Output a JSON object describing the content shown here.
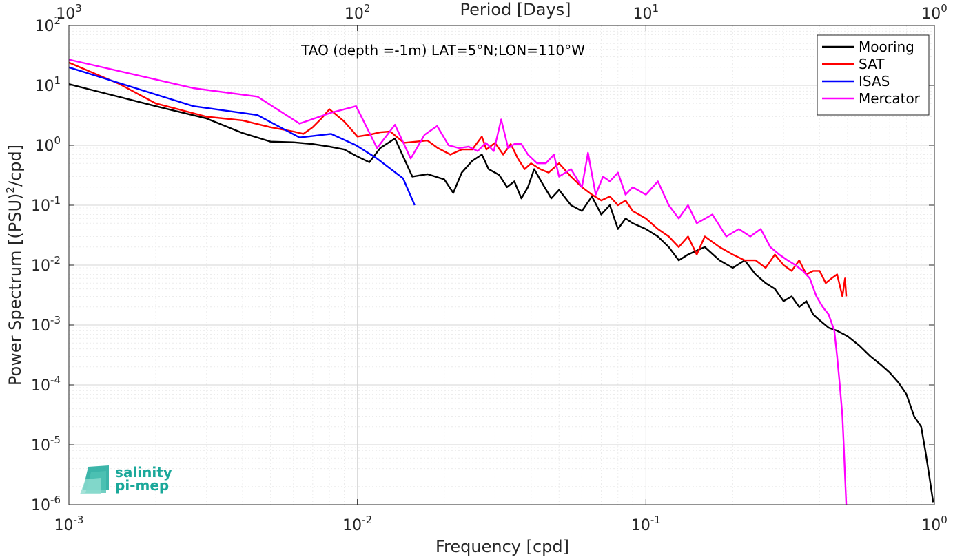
{
  "chart_data": {
    "type": "line",
    "title": "TAO (depth =-1m) LAT=5°N;LON=110°W",
    "xlabel": "Frequency [cpd]",
    "ylabel": "Power Spectrum [(PSU)²/cpd]",
    "ylabel_parts": {
      "before": "Power Spectrum [(PSU)",
      "sup": "2",
      "after": "/cpd]"
    },
    "top_xlabel": "Period [Days]",
    "x_scale": "log",
    "y_scale": "log",
    "xlim": [
      0.001,
      1
    ],
    "ylim": [
      1e-06,
      100
    ],
    "grid": true,
    "legend_position": "top-right",
    "x_ticks": [
      {
        "base": "10",
        "exp": "-3",
        "value": 0.001
      },
      {
        "base": "10",
        "exp": "-2",
        "value": 0.01
      },
      {
        "base": "10",
        "exp": "-1",
        "value": 0.1
      },
      {
        "base": "10",
        "exp": "0",
        "value": 1
      }
    ],
    "top_x_ticks": [
      {
        "base": "10",
        "exp": "3",
        "value": 0.001
      },
      {
        "base": "10",
        "exp": "2",
        "value": 0.01
      },
      {
        "base": "10",
        "exp": "1",
        "value": 0.1
      },
      {
        "base": "10",
        "exp": "0",
        "value": 1
      }
    ],
    "y_ticks": [
      {
        "base": "10",
        "exp": "2",
        "value": 100
      },
      {
        "base": "10",
        "exp": "1",
        "value": 10
      },
      {
        "base": "10",
        "exp": "0",
        "value": 1
      },
      {
        "base": "10",
        "exp": "-1",
        "value": 0.1
      },
      {
        "base": "10",
        "exp": "-2",
        "value": 0.01
      },
      {
        "base": "10",
        "exp": "-3",
        "value": 0.001
      },
      {
        "base": "10",
        "exp": "-4",
        "value": 0.0001
      },
      {
        "base": "10",
        "exp": "-5",
        "value": 1e-05
      },
      {
        "base": "10",
        "exp": "-6",
        "value": 1e-06
      }
    ],
    "series": [
      {
        "name": "Mooring",
        "color": "#000000",
        "x": [
          0.001,
          0.002,
          0.003,
          0.004,
          0.005,
          0.006,
          0.007,
          0.008,
          0.009,
          0.01,
          0.011,
          0.012,
          0.0135,
          0.0155,
          0.0175,
          0.02,
          0.0215,
          0.023,
          0.025,
          0.027,
          0.0285,
          0.031,
          0.033,
          0.035,
          0.037,
          0.039,
          0.041,
          0.044,
          0.047,
          0.05,
          0.055,
          0.06,
          0.065,
          0.07,
          0.075,
          0.08,
          0.085,
          0.09,
          0.1,
          0.11,
          0.12,
          0.13,
          0.14,
          0.16,
          0.18,
          0.2,
          0.22,
          0.24,
          0.26,
          0.28,
          0.3,
          0.32,
          0.34,
          0.36,
          0.38,
          0.4,
          0.43,
          0.46,
          0.5,
          0.55,
          0.6,
          0.65,
          0.7,
          0.75,
          0.8,
          0.85,
          0.9,
          0.93,
          0.96,
          0.99
        ],
        "y": [
          10.5,
          4.5,
          2.8,
          1.6,
          1.15,
          1.12,
          1.05,
          0.95,
          0.85,
          0.65,
          0.52,
          0.9,
          1.3,
          0.3,
          0.33,
          0.27,
          0.16,
          0.35,
          0.55,
          0.7,
          0.4,
          0.32,
          0.2,
          0.25,
          0.13,
          0.2,
          0.4,
          0.22,
          0.13,
          0.18,
          0.1,
          0.08,
          0.14,
          0.07,
          0.1,
          0.04,
          0.06,
          0.05,
          0.04,
          0.03,
          0.02,
          0.012,
          0.015,
          0.02,
          0.012,
          0.009,
          0.012,
          0.007,
          0.005,
          0.004,
          0.0025,
          0.003,
          0.002,
          0.0025,
          0.0015,
          0.0012,
          0.0009,
          0.0008,
          0.00065,
          0.00045,
          0.0003,
          0.00022,
          0.00016,
          0.00011,
          7e-05,
          3e-05,
          2e-05,
          8e-06,
          3e-06,
          1.1e-06
        ]
      },
      {
        "name": "SAT",
        "color": "#ff0000",
        "x": [
          0.001,
          0.0015,
          0.002,
          0.003,
          0.004,
          0.005,
          0.006,
          0.0065,
          0.007,
          0.0075,
          0.008,
          0.009,
          0.01,
          0.011,
          0.012,
          0.013,
          0.0145,
          0.016,
          0.0175,
          0.019,
          0.021,
          0.023,
          0.025,
          0.027,
          0.028,
          0.03,
          0.032,
          0.034,
          0.036,
          0.038,
          0.04,
          0.043,
          0.046,
          0.05,
          0.055,
          0.06,
          0.065,
          0.07,
          0.075,
          0.08,
          0.085,
          0.09,
          0.1,
          0.11,
          0.12,
          0.13,
          0.14,
          0.15,
          0.16,
          0.18,
          0.2,
          0.22,
          0.24,
          0.26,
          0.28,
          0.3,
          0.32,
          0.34,
          0.36,
          0.38,
          0.4,
          0.42,
          0.44,
          0.46,
          0.48,
          0.49,
          0.495
        ],
        "y": [
          24.0,
          10.5,
          5.0,
          3.0,
          2.6,
          2.0,
          1.7,
          1.55,
          2.0,
          2.8,
          4.0,
          2.5,
          1.4,
          1.5,
          1.65,
          1.7,
          1.1,
          1.15,
          1.2,
          0.9,
          0.7,
          0.85,
          0.85,
          1.4,
          0.85,
          1.1,
          0.7,
          1.05,
          0.6,
          0.4,
          0.5,
          0.4,
          0.35,
          0.5,
          0.3,
          0.2,
          0.15,
          0.12,
          0.14,
          0.1,
          0.12,
          0.08,
          0.06,
          0.04,
          0.03,
          0.02,
          0.03,
          0.015,
          0.03,
          0.02,
          0.015,
          0.012,
          0.012,
          0.009,
          0.015,
          0.01,
          0.008,
          0.012,
          0.007,
          0.008,
          0.008,
          0.005,
          0.006,
          0.007,
          0.003,
          0.006,
          0.003
        ]
      },
      {
        "name": "ISAS",
        "color": "#0000ff",
        "x": [
          0.001,
          0.0027,
          0.0045,
          0.0063,
          0.0081,
          0.0099,
          0.0117,
          0.0144,
          0.0158
        ],
        "y": [
          20.0,
          4.5,
          3.2,
          1.35,
          1.55,
          1.0,
          0.6,
          0.28,
          0.1
        ]
      },
      {
        "name": "Mercator",
        "color": "#ff00ff",
        "x": [
          0.001,
          0.0027,
          0.0045,
          0.0063,
          0.0081,
          0.0099,
          0.0117,
          0.0135,
          0.0153,
          0.0171,
          0.0189,
          0.0207,
          0.0225,
          0.0243,
          0.0261,
          0.0279,
          0.0297,
          0.0315,
          0.0333,
          0.035,
          0.037,
          0.039,
          0.042,
          0.045,
          0.048,
          0.05,
          0.055,
          0.06,
          0.063,
          0.067,
          0.071,
          0.075,
          0.08,
          0.085,
          0.09,
          0.1,
          0.11,
          0.12,
          0.13,
          0.14,
          0.15,
          0.17,
          0.19,
          0.21,
          0.23,
          0.25,
          0.27,
          0.29,
          0.31,
          0.33,
          0.35,
          0.37,
          0.39,
          0.41,
          0.43,
          0.45,
          0.46,
          0.47,
          0.48,
          0.485,
          0.49,
          0.495
        ],
        "y": [
          27.0,
          9.0,
          6.5,
          2.3,
          3.5,
          4.5,
          0.9,
          2.2,
          0.6,
          1.5,
          2.1,
          1.0,
          0.9,
          0.95,
          0.8,
          1.1,
          0.8,
          2.7,
          0.9,
          1.05,
          1.05,
          0.7,
          0.5,
          0.5,
          0.7,
          0.3,
          0.4,
          0.2,
          0.75,
          0.15,
          0.3,
          0.25,
          0.35,
          0.15,
          0.2,
          0.15,
          0.25,
          0.1,
          0.06,
          0.1,
          0.05,
          0.07,
          0.03,
          0.04,
          0.03,
          0.04,
          0.02,
          0.015,
          0.012,
          0.01,
          0.008,
          0.006,
          0.003,
          0.002,
          0.0015,
          0.0008,
          0.0003,
          0.0001,
          3e-05,
          1e-05,
          3e-06,
          1e-06
        ]
      }
    ]
  },
  "logo": {
    "line1": "salinity",
    "line2": "pi-mep",
    "color": "#1aa89a"
  }
}
